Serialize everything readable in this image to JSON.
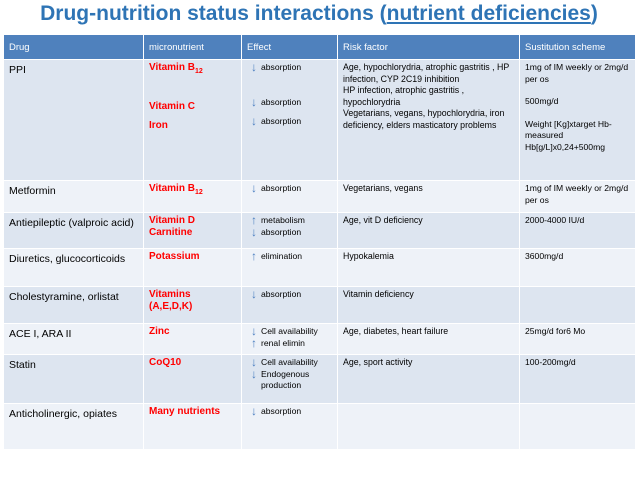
{
  "title": {
    "prefix": "Drug-nutrition status interactions (",
    "highlight": "nutrient deficiencies",
    "suffix": ")"
  },
  "headers": [
    "Drug",
    "micronutrient",
    "Effect",
    "Risk factor",
    "Sustitution scheme"
  ],
  "arrows": {
    "down": "↓",
    "up": "↑"
  },
  "rows": [
    {
      "drug": "PPI",
      "micro": [
        "Vitamin B",
        "Vitamin C",
        "Iron"
      ],
      "micro_sub": "12",
      "effects": [
        "absorption",
        "absorption",
        "absorption"
      ],
      "risk": [
        "Age, hypochlorydria, atrophic gastritis , HP infection, CYP 2C19 inhibition",
        "HP infection, atrophic gastritis , hypochlorydria",
        "Vegetarians, vegans, hypochlorydria, iron deficiency, elders masticatory problems"
      ],
      "scheme": [
        "1mg of IM weekly or 2mg/d per os",
        "500mg/d",
        "Weight [Kg]xtarget Hb-measured Hb[g/L]x0,24+500mg"
      ]
    },
    {
      "drug": "Metformin",
      "micro": "Vitamin B",
      "micro_sub": "12",
      "effect": "absorption",
      "risk": "Vegetarians, vegans",
      "scheme": "1mg of IM weekly or 2mg/d per os"
    },
    {
      "drug": "Antiepileptic (valproic acid)",
      "micro": [
        "Vitamin D",
        "Carnitine"
      ],
      "effects": [
        "metabolism",
        "absorption"
      ],
      "risk": "Age, vit D deficiency",
      "scheme": "2000-4000 IU/d"
    },
    {
      "drug": "Diuretics, glucocorticoids",
      "micro": "Potassium",
      "effect": "elimination",
      "risk": "Hypokalemia",
      "scheme": "3600mg/d"
    },
    {
      "drug": "Cholestyramine, orlistat",
      "micro": "Vitamins (A,E,D,K)",
      "effect": "absorption",
      "risk": "Vitamin deficiency",
      "scheme": ""
    },
    {
      "drug": "ACE I, ARA II",
      "micro": "Zinc",
      "effects": [
        "Cell availability",
        "renal elimin"
      ],
      "risk": "Age, diabetes, heart failure",
      "scheme": "25mg/d for6 Mo"
    },
    {
      "drug": "Statin",
      "micro": "CoQ10",
      "effects": [
        "Cell availability",
        "Endogenous production"
      ],
      "risk": "Age, sport activity",
      "scheme": "100-200mg/d"
    },
    {
      "drug": "Anticholinergic, opiates",
      "micro": "Many nutrients",
      "effect": "absorption",
      "risk": "",
      "scheme": ""
    }
  ]
}
